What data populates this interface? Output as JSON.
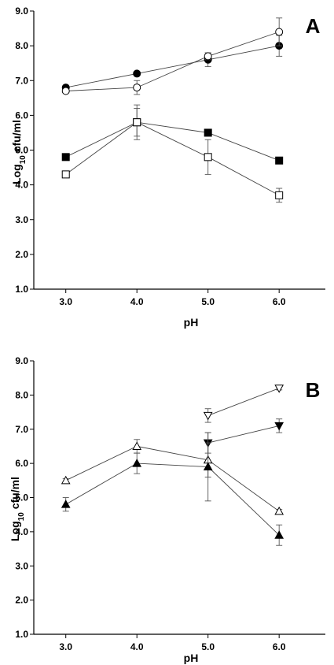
{
  "chart_data": [
    {
      "panel": "A",
      "type": "scatter",
      "xlabel": "pH",
      "ylabel_main": "Log",
      "ylabel_sub": "10",
      "ylabel_tail": " cfu/ml",
      "x_ticks": [
        "3.0",
        "4.0",
        "5.0",
        "6.0"
      ],
      "y_ticks": [
        "1.0",
        "2.0",
        "3.0",
        "4.0",
        "5.0",
        "6.0",
        "7.0",
        "8.0",
        "9.0"
      ],
      "xlim": [
        2.55,
        6.65
      ],
      "ylim": [
        1.0,
        9.0
      ],
      "grid": false,
      "series": [
        {
          "marker": "circle",
          "filled": true,
          "x": [
            3.0,
            4.0,
            5.0,
            6.0
          ],
          "y": [
            6.8,
            7.2,
            7.6,
            8.0
          ],
          "err": [
            0.05,
            0.05,
            0.2,
            0.3
          ]
        },
        {
          "marker": "circle",
          "filled": false,
          "x": [
            3.0,
            4.0,
            5.0,
            6.0
          ],
          "y": [
            6.7,
            6.8,
            7.7,
            8.4
          ],
          "err": [
            0.05,
            0.2,
            0.1,
            0.4
          ]
        },
        {
          "marker": "square",
          "filled": true,
          "x": [
            3.0,
            4.0,
            5.0,
            6.0
          ],
          "y": [
            4.8,
            5.8,
            5.5,
            4.7
          ],
          "err": [
            0.05,
            0.4,
            0.05,
            0.05
          ]
        },
        {
          "marker": "square",
          "filled": false,
          "x": [
            3.0,
            4.0,
            5.0,
            6.0
          ],
          "y": [
            4.3,
            5.8,
            4.8,
            3.7
          ],
          "err": [
            0.05,
            0.5,
            0.5,
            0.2
          ]
        }
      ]
    },
    {
      "panel": "B",
      "type": "scatter",
      "xlabel": "pH",
      "ylabel_main": "Log",
      "ylabel_sub": "10",
      "ylabel_tail": " cfu/ml",
      "x_ticks": [
        "3.0",
        "4.0",
        "5.0",
        "6.0"
      ],
      "y_ticks": [
        "1.0",
        "2.0",
        "3.0",
        "4.0",
        "5.0",
        "6.0",
        "7.0",
        "8.0",
        "9.0"
      ],
      "xlim": [
        2.55,
        6.65
      ],
      "ylim": [
        1.0,
        9.0
      ],
      "grid": false,
      "series": [
        {
          "marker": "triangle-down",
          "filled": false,
          "x": [
            5.0,
            6.0
          ],
          "y": [
            7.4,
            8.2
          ],
          "err": [
            0.2,
            0.05
          ]
        },
        {
          "marker": "triangle-down",
          "filled": true,
          "x": [
            5.0,
            6.0
          ],
          "y": [
            6.6,
            7.1
          ],
          "err": [
            0.3,
            0.2
          ]
        },
        {
          "marker": "triangle-up",
          "filled": false,
          "x": [
            3.0,
            4.0,
            5.0,
            6.0
          ],
          "y": [
            5.5,
            6.5,
            6.1,
            4.6
          ],
          "err": [
            0.05,
            0.2,
            0.5,
            0.05
          ]
        },
        {
          "marker": "triangle-up",
          "filled": true,
          "x": [
            3.0,
            4.0,
            5.0,
            6.0
          ],
          "y": [
            4.8,
            6.0,
            5.9,
            3.9
          ],
          "err": [
            0.2,
            0.3,
            1.0,
            0.3
          ]
        }
      ]
    }
  ]
}
